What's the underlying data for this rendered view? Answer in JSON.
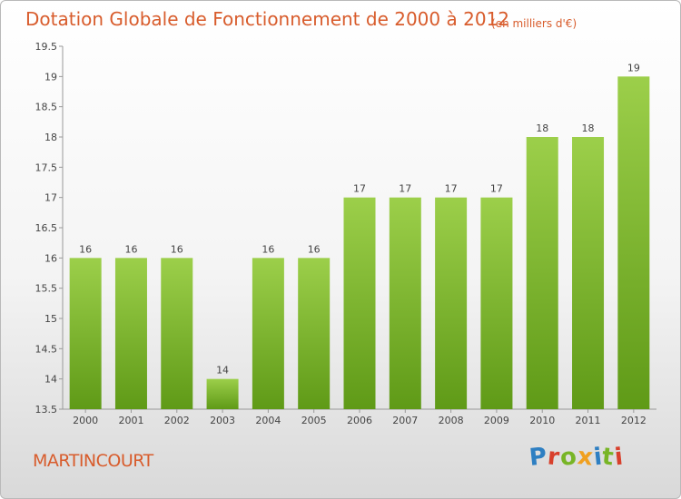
{
  "header": {
    "title": "Dotation Globale de Fonctionnement de 2000 à 2012",
    "subtitle": "(en milliers d'€)"
  },
  "footer": {
    "commune": "MARTINCOURT",
    "logo": "Proxiti"
  },
  "colors": {
    "title": "#d85c2c",
    "bar_light": "#9ccf4a",
    "bar_dark": "#5f9a17",
    "logo_letters": [
      "#2e7fc2",
      "#d8402c",
      "#78b526",
      "#f0a020",
      "#2e7fc2",
      "#78b526",
      "#d8402c"
    ]
  },
  "chart_data": {
    "type": "bar",
    "title": "Dotation Globale de Fonctionnement de 2000 à 2012",
    "subtitle": "(en milliers d'€)",
    "categories": [
      "2000",
      "2001",
      "2002",
      "2003",
      "2004",
      "2005",
      "2006",
      "2007",
      "2008",
      "2009",
      "2010",
      "2011",
      "2012"
    ],
    "values": [
      16,
      16,
      16,
      14,
      16,
      16,
      17,
      17,
      17,
      17,
      18,
      18,
      19
    ],
    "xlabel": "",
    "ylabel": "",
    "ylim": [
      13.5,
      19.5
    ],
    "yticks": [
      "13.5",
      "14",
      "14.5",
      "15",
      "15.5",
      "16",
      "16.5",
      "17",
      "17.5",
      "18",
      "18.5",
      "19",
      "19.5"
    ],
    "grid": false,
    "legend": "none"
  }
}
